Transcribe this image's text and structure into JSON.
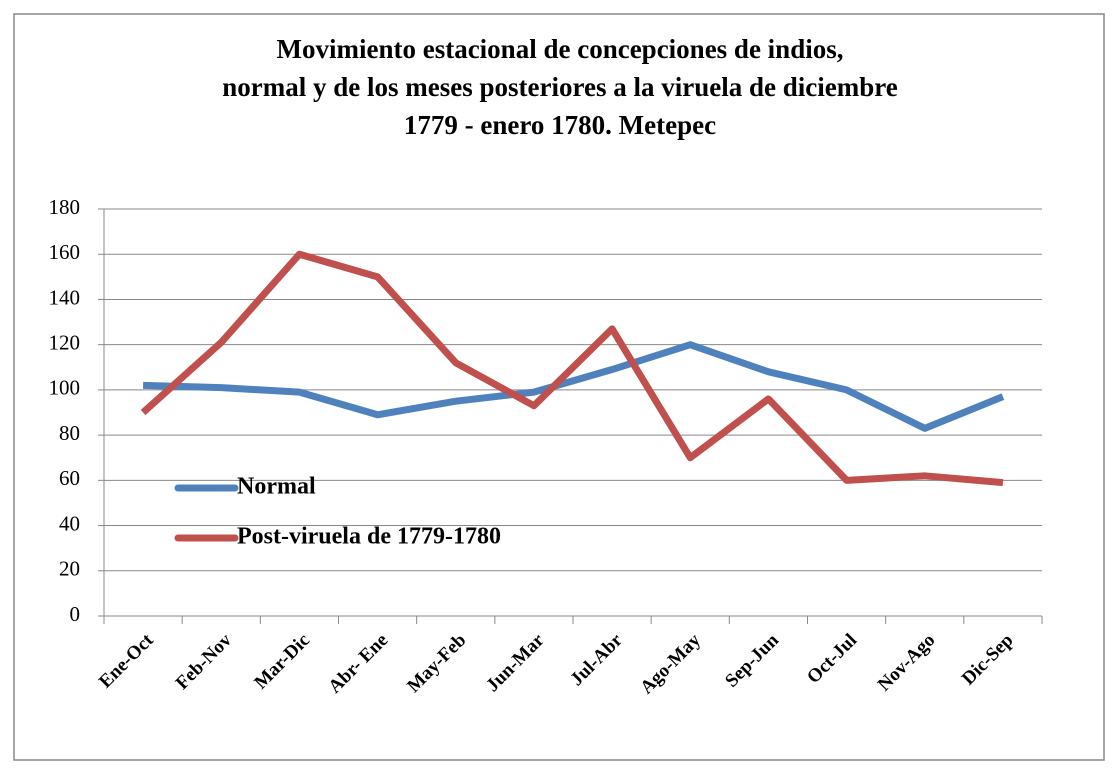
{
  "chart_data": {
    "type": "line",
    "title": [
      "Movimiento estacional de concepciones de indios,",
      "normal y de los meses posteriores a la viruela de diciembre",
      "1779 - enero 1780. Metepec"
    ],
    "categories": [
      "Ene-Oct",
      "Feb-Nov",
      "Mar-Dic",
      "Abr- Ene",
      "May-Feb",
      "Jun-Mar",
      "Jul-Abr",
      "Ago-May",
      "Sep-Jun",
      "Oct-Jul",
      "Nov-Ago",
      "Dic-Sep"
    ],
    "series": [
      {
        "name": "Normal",
        "color": "#4f81bd",
        "values": [
          102,
          101,
          99,
          89,
          95,
          99,
          109,
          120,
          108,
          100,
          83,
          97
        ]
      },
      {
        "name": "Post-viruela de 1779-1780",
        "color": "#c0504d",
        "values": [
          90,
          121,
          160,
          150,
          112,
          93,
          127,
          70,
          96,
          60,
          62,
          59
        ]
      }
    ],
    "ylim": [
      0,
      180
    ],
    "yticks": [
      0,
      20,
      40,
      60,
      80,
      100,
      120,
      140,
      160,
      180
    ],
    "grid": true,
    "legend": "left"
  }
}
